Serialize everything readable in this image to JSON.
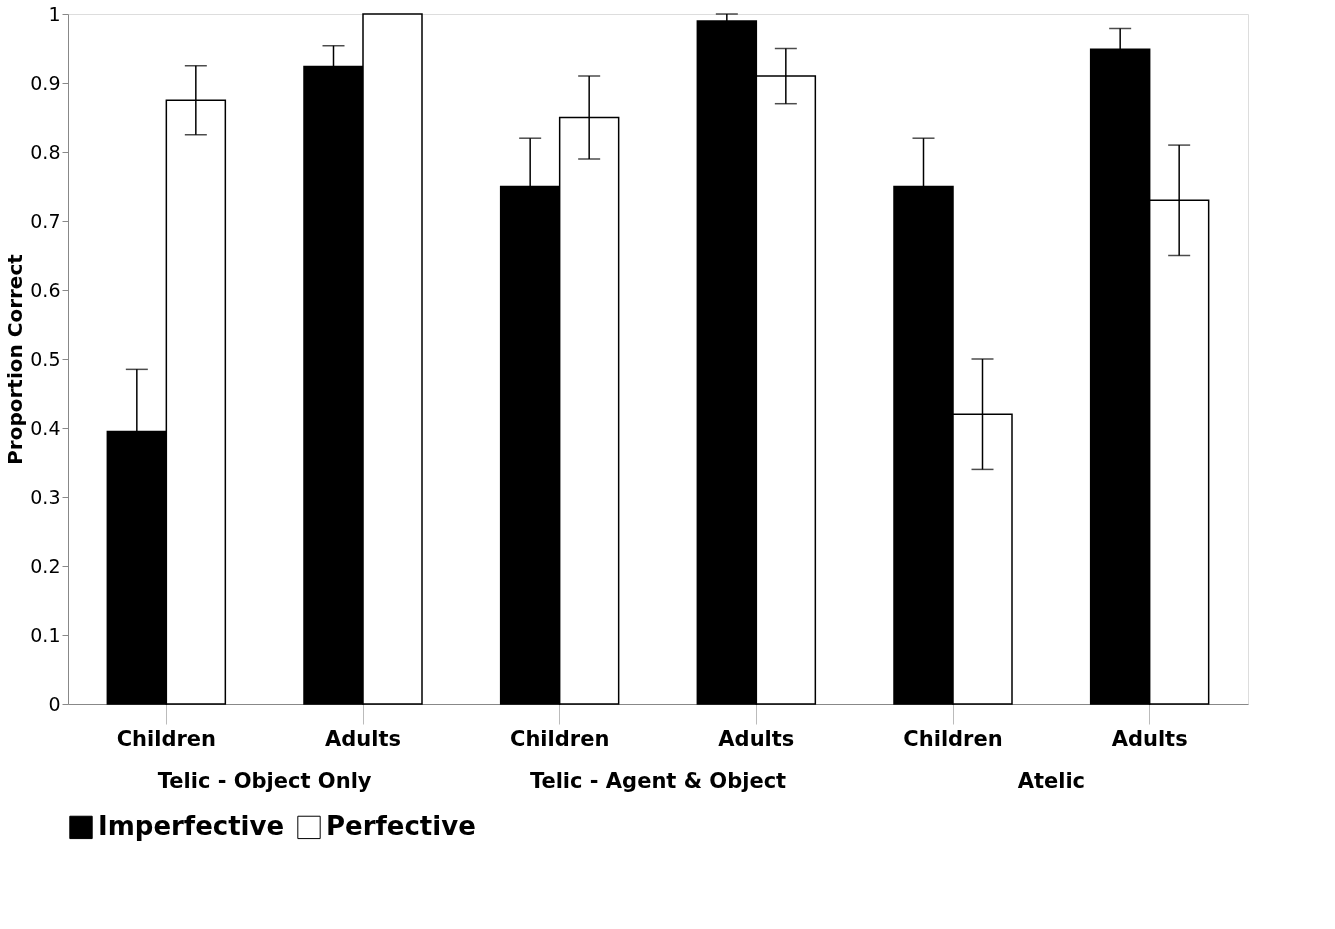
{
  "chart_data": {
    "type": "bar",
    "ylabel": "Proportion Correct",
    "categories": [
      "Children",
      "Adults",
      "Children",
      "Adults",
      "Children",
      "Adults"
    ],
    "series": [
      {
        "name": "Imperfective",
        "color": "#000000",
        "values": [
          0.395,
          0.924,
          0.75,
          0.99,
          0.75,
          0.949
        ],
        "errors": [
          0.09,
          0.03,
          0.07,
          0.01,
          0.07,
          0.03
        ]
      },
      {
        "name": "Perfective",
        "color": "#ffffff",
        "values": [
          0.875,
          1.0,
          0.85,
          0.91,
          0.42,
          0.73
        ],
        "errors": [
          0.05,
          null,
          0.06,
          0.04,
          0.08,
          0.08
        ]
      }
    ],
    "annotations": [
      "Telic - Object Only",
      "Telic - Agent & Object",
      "Atelic"
    ],
    "ylim": [
      0,
      1
    ],
    "yticks": [
      0,
      0.1,
      0.2,
      0.3,
      0.4,
      0.5,
      0.6,
      0.7,
      0.8,
      0.9,
      1
    ],
    "grid": false,
    "legend": "bottom"
  }
}
